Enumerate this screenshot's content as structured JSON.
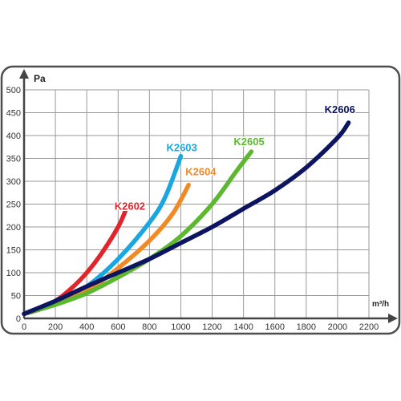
{
  "chart_data": {
    "type": "line",
    "title": "",
    "xlabel": "m³/h",
    "ylabel": "Pa",
    "xlim": [
      0,
      2200
    ],
    "ylim": [
      0,
      500
    ],
    "x_ticks": [
      0,
      200,
      400,
      600,
      800,
      1000,
      1200,
      1400,
      1600,
      1800,
      2000,
      2200
    ],
    "y_ticks": [
      0,
      50,
      100,
      150,
      200,
      250,
      300,
      350,
      400,
      450,
      500
    ],
    "grid": true,
    "legend": "labels-on-curves",
    "series": [
      {
        "name": "K2602",
        "color": "#e0262b",
        "points": [
          [
            0,
            10
          ],
          [
            100,
            20
          ],
          [
            200,
            38
          ],
          [
            300,
            65
          ],
          [
            400,
            100
          ],
          [
            500,
            145
          ],
          [
            600,
            200
          ],
          [
            650,
            238
          ]
        ]
      },
      {
        "name": "K2603",
        "color": "#1aa7e0",
        "points": [
          [
            0,
            10
          ],
          [
            200,
            35
          ],
          [
            400,
            70
          ],
          [
            600,
            130
          ],
          [
            800,
            210
          ],
          [
            900,
            265
          ],
          [
            1000,
            355
          ]
        ]
      },
      {
        "name": "K2604",
        "color": "#f08a24",
        "points": [
          [
            0,
            10
          ],
          [
            200,
            32
          ],
          [
            400,
            60
          ],
          [
            600,
            110
          ],
          [
            800,
            170
          ],
          [
            950,
            230
          ],
          [
            1050,
            292
          ]
        ]
      },
      {
        "name": "K2605",
        "color": "#5cb82e",
        "points": [
          [
            0,
            10
          ],
          [
            200,
            30
          ],
          [
            400,
            55
          ],
          [
            600,
            90
          ],
          [
            800,
            130
          ],
          [
            1000,
            180
          ],
          [
            1200,
            250
          ],
          [
            1350,
            320
          ],
          [
            1450,
            365
          ]
        ]
      },
      {
        "name": "K2606",
        "color": "#0d1460",
        "points": [
          [
            0,
            10
          ],
          [
            200,
            38
          ],
          [
            400,
            70
          ],
          [
            600,
            100
          ],
          [
            800,
            130
          ],
          [
            1000,
            165
          ],
          [
            1200,
            200
          ],
          [
            1400,
            240
          ],
          [
            1600,
            280
          ],
          [
            1800,
            330
          ],
          [
            2000,
            395
          ],
          [
            2070,
            428
          ]
        ]
      }
    ]
  }
}
